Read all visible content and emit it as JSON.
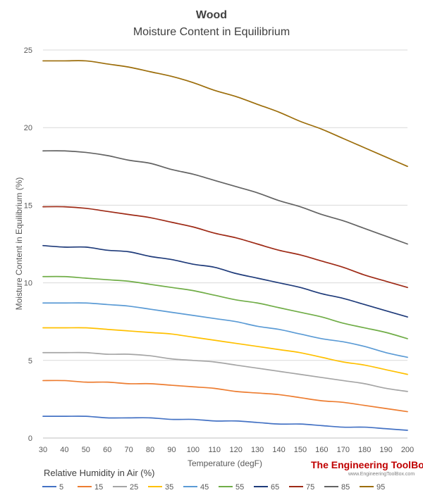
{
  "chart_data": {
    "type": "line",
    "title": "Wood",
    "subtitle": "Moisture Content in Equilibrium",
    "xlabel": "Temperature (degF)",
    "ylabel": "Moisture Content in Equilibrium (%)",
    "xlim": [
      30,
      200
    ],
    "ylim": [
      0,
      25
    ],
    "x": [
      30,
      40,
      50,
      60,
      70,
      80,
      90,
      100,
      110,
      120,
      130,
      140,
      150,
      160,
      170,
      180,
      190,
      200
    ],
    "x_ticks": [
      30,
      40,
      50,
      60,
      70,
      80,
      90,
      100,
      110,
      120,
      130,
      140,
      150,
      160,
      170,
      180,
      190,
      200
    ],
    "y_ticks": [
      0,
      5,
      10,
      15,
      20,
      25
    ],
    "grid": "horizontal",
    "legend_title": "Relative Humidity in Air (%)",
    "legend_position": "bottom",
    "series": [
      {
        "name": "5",
        "color": "#4472c4",
        "values": [
          1.4,
          1.4,
          1.4,
          1.3,
          1.3,
          1.3,
          1.2,
          1.2,
          1.1,
          1.1,
          1.0,
          0.9,
          0.9,
          0.8,
          0.7,
          0.7,
          0.6,
          0.5
        ]
      },
      {
        "name": "15",
        "color": "#ed7d31",
        "values": [
          3.7,
          3.7,
          3.6,
          3.6,
          3.5,
          3.5,
          3.4,
          3.3,
          3.2,
          3.0,
          2.9,
          2.8,
          2.6,
          2.4,
          2.3,
          2.1,
          1.9,
          1.7
        ]
      },
      {
        "name": "25",
        "color": "#a5a5a5",
        "values": [
          5.5,
          5.5,
          5.5,
          5.4,
          5.4,
          5.3,
          5.1,
          5.0,
          4.9,
          4.7,
          4.5,
          4.3,
          4.1,
          3.9,
          3.7,
          3.5,
          3.2,
          3.0
        ]
      },
      {
        "name": "35",
        "color": "#ffc000",
        "values": [
          7.1,
          7.1,
          7.1,
          7.0,
          6.9,
          6.8,
          6.7,
          6.5,
          6.3,
          6.1,
          5.9,
          5.7,
          5.5,
          5.2,
          4.9,
          4.7,
          4.4,
          4.1
        ]
      },
      {
        "name": "45",
        "color": "#5b9bd5",
        "values": [
          8.7,
          8.7,
          8.7,
          8.6,
          8.5,
          8.3,
          8.1,
          7.9,
          7.7,
          7.5,
          7.2,
          7.0,
          6.7,
          6.4,
          6.2,
          5.9,
          5.5,
          5.2
        ]
      },
      {
        "name": "55",
        "color": "#70ad47",
        "values": [
          10.4,
          10.4,
          10.3,
          10.2,
          10.1,
          9.9,
          9.7,
          9.5,
          9.2,
          8.9,
          8.7,
          8.4,
          8.1,
          7.8,
          7.4,
          7.1,
          6.8,
          6.4
        ]
      },
      {
        "name": "65",
        "color": "#1f3b7a",
        "values": [
          12.4,
          12.3,
          12.3,
          12.1,
          12.0,
          11.7,
          11.5,
          11.2,
          11.0,
          10.6,
          10.3,
          10.0,
          9.7,
          9.3,
          9.0,
          8.6,
          8.2,
          7.8
        ]
      },
      {
        "name": "75",
        "color": "#9e2a16",
        "values": [
          14.9,
          14.9,
          14.8,
          14.6,
          14.4,
          14.2,
          13.9,
          13.6,
          13.2,
          12.9,
          12.5,
          12.1,
          11.8,
          11.4,
          11.0,
          10.5,
          10.1,
          9.7
        ]
      },
      {
        "name": "85",
        "color": "#636363",
        "values": [
          18.5,
          18.5,
          18.4,
          18.2,
          17.9,
          17.7,
          17.3,
          17.0,
          16.6,
          16.2,
          15.8,
          15.3,
          14.9,
          14.4,
          14.0,
          13.5,
          13.0,
          12.5
        ]
      },
      {
        "name": "95",
        "color": "#9c6d0a",
        "values": [
          24.3,
          24.3,
          24.3,
          24.1,
          23.9,
          23.6,
          23.3,
          22.9,
          22.4,
          22.0,
          21.5,
          21.0,
          20.4,
          19.9,
          19.3,
          18.7,
          18.1,
          17.5
        ]
      }
    ]
  },
  "brand": {
    "name": "The Engineering ToolBox",
    "url": "www.EngineeringToolBox.com"
  }
}
